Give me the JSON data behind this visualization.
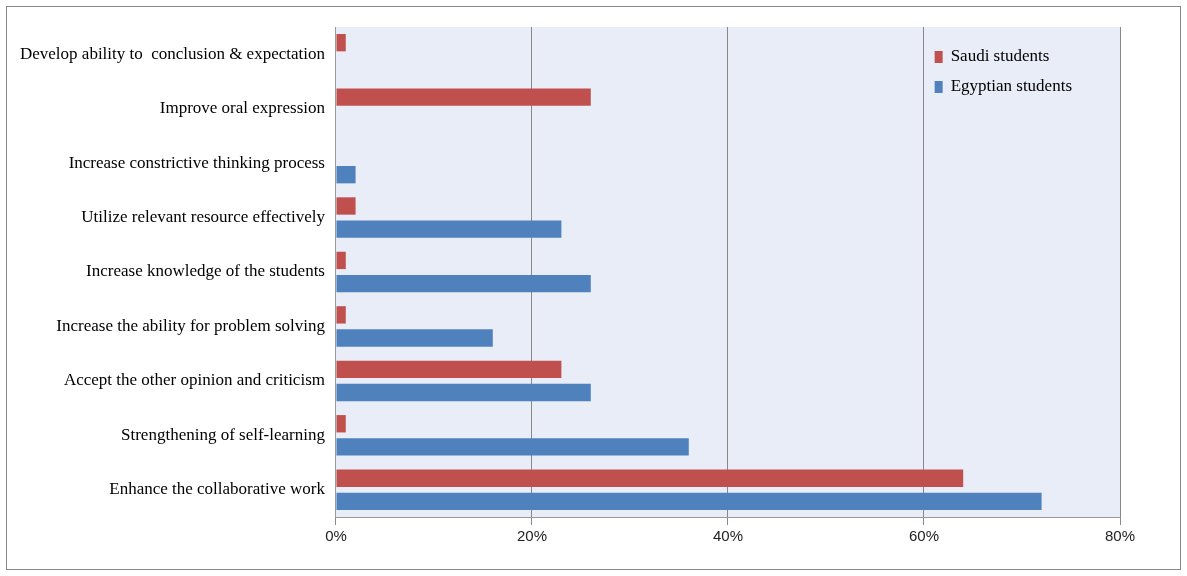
{
  "chart_data": {
    "type": "bar",
    "orientation": "horizontal",
    "categories": [
      "Develop ability to  conclusion & expectation",
      "Improve oral expression",
      "Increase constrictive thinking process",
      "Utilize relevant resource effectively",
      "Increase knowledge of the students",
      "Increase the ability for problem solving",
      "Accept the other opinion and criticism",
      "Strengthening of self-learning",
      "Enhance the collaborative work"
    ],
    "series": [
      {
        "name": "Saudi students",
        "color": "#c0504d",
        "values": [
          1,
          26,
          0,
          2,
          1,
          1,
          23,
          1,
          64
        ]
      },
      {
        "name": "Egyptian students",
        "color": "#4f81bd",
        "values": [
          0,
          0,
          2,
          23,
          26,
          16,
          26,
          36,
          72
        ]
      }
    ],
    "xlim": [
      0,
      80
    ],
    "xticks": [
      {
        "value": 0,
        "label": "0%"
      },
      {
        "value": 20,
        "label": "20%"
      },
      {
        "value": 40,
        "label": "40%"
      },
      {
        "value": 60,
        "label": "60%"
      },
      {
        "value": 80,
        "label": "80%"
      }
    ],
    "grid": "x",
    "legend": "top right"
  }
}
